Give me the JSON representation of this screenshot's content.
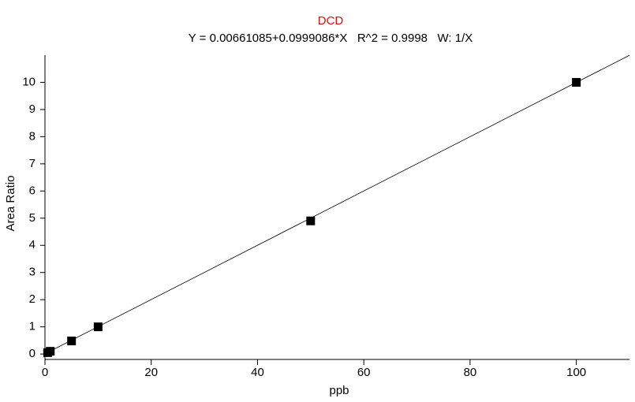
{
  "chart_data": {
    "type": "scatter",
    "title": "DCD",
    "subtitle": "Y = 0.00661085+0.0999086*X   R^2 = 0.9998   W: 1/X",
    "x_label": "ppb",
    "y_label": "Area Ratio",
    "x": [
      0.5,
      1,
      5,
      10,
      50,
      100
    ],
    "values": [
      0.05,
      0.1,
      0.48,
      1.0,
      4.9,
      10.0
    ],
    "color": "#000000",
    "fit": {
      "intercept": 0.00661085,
      "slope": 0.0999086
    },
    "title_color": "#e01010",
    "xlim": [
      0,
      110
    ],
    "xticks": [
      0,
      20,
      40,
      60,
      80,
      100
    ],
    "ylim": [
      -0.2,
      11
    ],
    "yticks": [
      0,
      1,
      2,
      3,
      4,
      5,
      6,
      7,
      8,
      9,
      10
    ],
    "grid": false
  }
}
